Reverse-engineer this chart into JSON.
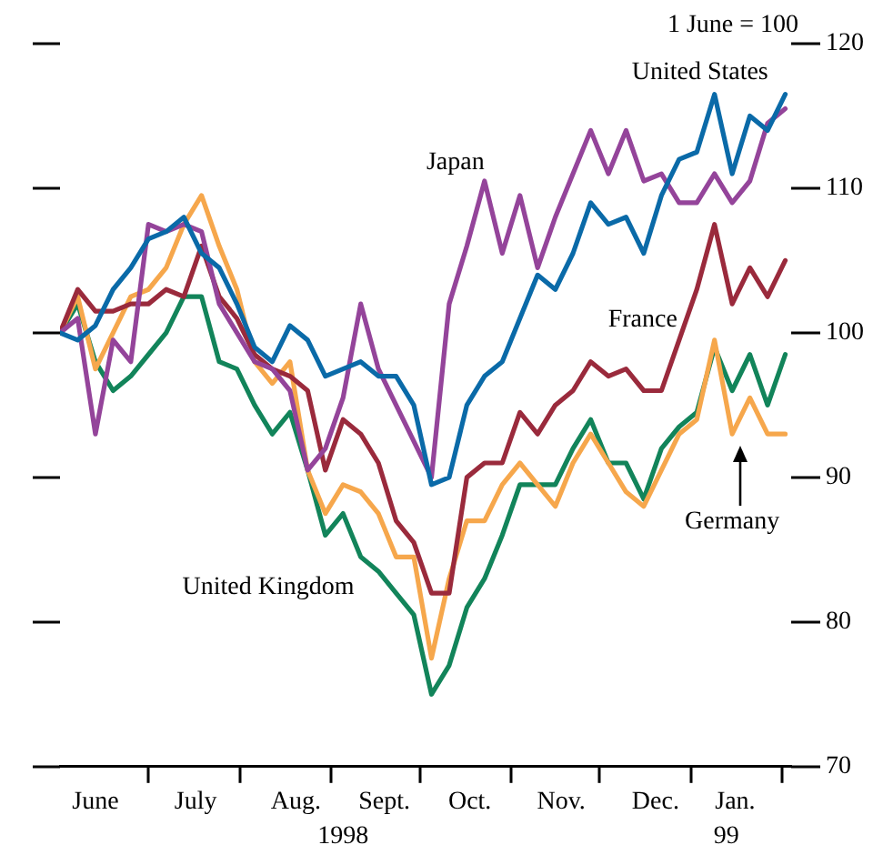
{
  "chart_data": {
    "type": "line",
    "annotations": [
      "1 June = 100"
    ],
    "x": [
      "1998-06-01",
      "1998-06-07",
      "1998-06-13",
      "1998-06-19",
      "1998-06-25",
      "1998-07-01",
      "1998-07-07",
      "1998-07-13",
      "1998-07-19",
      "1998-07-25",
      "1998-07-31",
      "1998-08-06",
      "1998-08-12",
      "1998-08-18",
      "1998-08-24",
      "1998-08-30",
      "1998-09-05",
      "1998-09-11",
      "1998-09-17",
      "1998-09-23",
      "1998-09-29",
      "1998-10-05",
      "1998-10-11",
      "1998-10-17",
      "1998-10-23",
      "1998-10-29",
      "1998-11-04",
      "1998-11-10",
      "1998-11-16",
      "1998-11-22",
      "1998-11-28",
      "1998-12-04",
      "1998-12-10",
      "1998-12-16",
      "1998-12-22",
      "1998-12-28",
      "1999-01-03",
      "1999-01-09",
      "1999-01-15",
      "1999-01-21",
      "1999-01-27",
      "1999-02-02"
    ],
    "series": [
      {
        "name": "United States",
        "color": "#0a6aa8",
        "values": [
          100,
          99.5,
          100.5,
          103,
          104.5,
          106.5,
          107,
          108,
          105.5,
          104.5,
          102,
          99,
          98,
          100.5,
          99.5,
          97,
          97.5,
          98,
          97,
          97,
          95,
          89.5,
          90,
          95,
          97,
          98,
          101,
          104,
          103,
          105.5,
          109,
          107.5,
          108,
          105.5,
          109.5,
          112,
          112.5,
          116.5,
          111,
          115,
          114,
          116.5
        ]
      },
      {
        "name": "Japan",
        "color": "#94449a",
        "values": [
          100,
          101,
          93,
          99.5,
          98,
          107.5,
          107,
          107.5,
          107,
          102,
          100,
          98,
          97.5,
          96,
          90.5,
          92,
          95.5,
          102,
          97.5,
          95,
          92.5,
          90,
          102,
          106,
          110.5,
          105.5,
          109.5,
          104.5,
          108,
          111,
          114,
          111,
          114,
          110.5,
          111,
          109,
          109,
          111,
          109,
          110.5,
          114.5,
          115.5
        ]
      },
      {
        "name": "France",
        "color": "#9a2a3c",
        "values": [
          100,
          103,
          101.5,
          101.5,
          102,
          102,
          103,
          102.5,
          106,
          102.5,
          101,
          98.5,
          97.5,
          97,
          96,
          90.5,
          94,
          93,
          91,
          87,
          85.5,
          82,
          82,
          90,
          91,
          91,
          94.5,
          93,
          95,
          96,
          98,
          97,
          97.5,
          96,
          96,
          99.5,
          103,
          107.5,
          102,
          104.5,
          102.5,
          105
        ]
      },
      {
        "name": "Germany",
        "color": "#f6a74c",
        "values": [
          100,
          102.5,
          97.5,
          100,
          102.5,
          103,
          104.5,
          107.5,
          109.5,
          106,
          103,
          98,
          96.5,
          98,
          90.5,
          87.5,
          89.5,
          89,
          87.5,
          84.5,
          84.5,
          77.5,
          83,
          87,
          87,
          89.5,
          91,
          89.5,
          88,
          91,
          93,
          91,
          89,
          88,
          90.5,
          93,
          94,
          99.5,
          93,
          95.5,
          93,
          93
        ]
      },
      {
        "name": "United Kingdom",
        "color": "#12845a",
        "values": [
          100,
          102,
          98,
          96,
          97,
          98.5,
          100,
          102.5,
          102.5,
          98,
          97.5,
          95,
          93,
          94.5,
          90.5,
          86,
          87.5,
          84.5,
          83.5,
          82,
          80.5,
          75,
          77,
          81,
          83,
          86,
          89.5,
          89.5,
          89.5,
          92,
          94,
          91,
          91,
          88.5,
          92,
          93.5,
          94.5,
          99,
          96,
          98.5,
          95,
          98.5
        ]
      }
    ],
    "xlim": [
      "1998-06-01",
      "1999-02-04"
    ],
    "xticks": [
      {
        "value": "1998-06-13",
        "label": "June"
      },
      {
        "value": "1998-07-01",
        "label": null
      },
      {
        "value": "1998-07-17",
        "label": "July"
      },
      {
        "value": "1998-08-01",
        "label": null
      },
      {
        "value": "1998-08-20",
        "label": "Aug."
      },
      {
        "value": "1998-09-01",
        "label": null
      },
      {
        "value": "1998-09-19",
        "label": "Sept."
      },
      {
        "value": "1998-10-01",
        "label": null
      },
      {
        "value": "1998-10-18",
        "label": "Oct."
      },
      {
        "value": "1998-11-01",
        "label": null
      },
      {
        "value": "1998-11-18",
        "label": "Nov."
      },
      {
        "value": "1998-12-01",
        "label": null
      },
      {
        "value": "1998-12-20",
        "label": "Dec."
      },
      {
        "value": "1999-01-01",
        "label": null
      },
      {
        "value": "1999-01-16",
        "label": "Jan."
      },
      {
        "value": "1999-02-01",
        "label": null
      }
    ],
    "x2lim": [
      "1998-06-01",
      "1999-02-04"
    ],
    "x2ticks": [
      {
        "value": "1998-09-05",
        "label": "1998"
      },
      {
        "value": "1999-01-13",
        "label": "99"
      }
    ],
    "ylim": [
      70,
      120
    ],
    "yticks": [
      70,
      80,
      90,
      100,
      110,
      120
    ],
    "grid": false,
    "legend": false,
    "marker": "none",
    "line_style": "solid"
  }
}
